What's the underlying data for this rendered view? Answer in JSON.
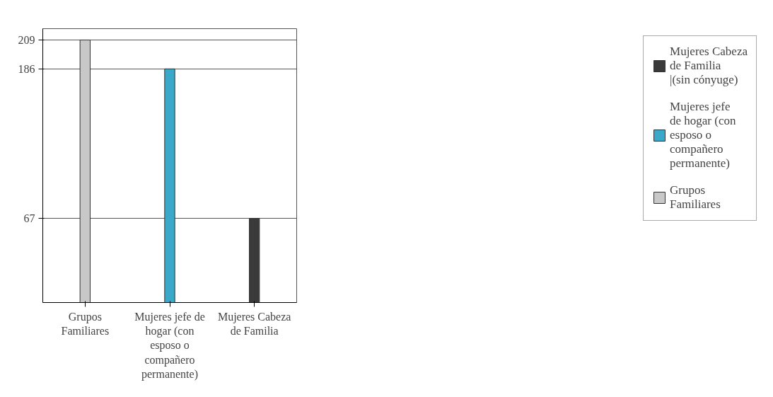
{
  "chart_data": {
    "type": "bar",
    "categories": [
      "Grupos Familiares",
      "Mujeres jefe de hogar (con esposo o compañero permanente)",
      "Mujeres Cabeza de Familia"
    ],
    "series": [
      {
        "name": "Mujeres Cabeza de Familia |(sin cónyuge)",
        "color": "#3a3a3a",
        "values": [
          null,
          null,
          67
        ]
      },
      {
        "name": "Mujeres jefe de hogar (con esposo o compañero permanente)",
        "color": "#3aa8c8",
        "values": [
          null,
          186,
          null
        ]
      },
      {
        "name": "Grupos Familiares",
        "color": "#c8c8c8",
        "values": [
          209,
          null,
          null
        ]
      }
    ],
    "ylim": [
      0,
      218
    ],
    "yticks": [
      67,
      186,
      209
    ],
    "grid": "y",
    "legend": "right"
  }
}
